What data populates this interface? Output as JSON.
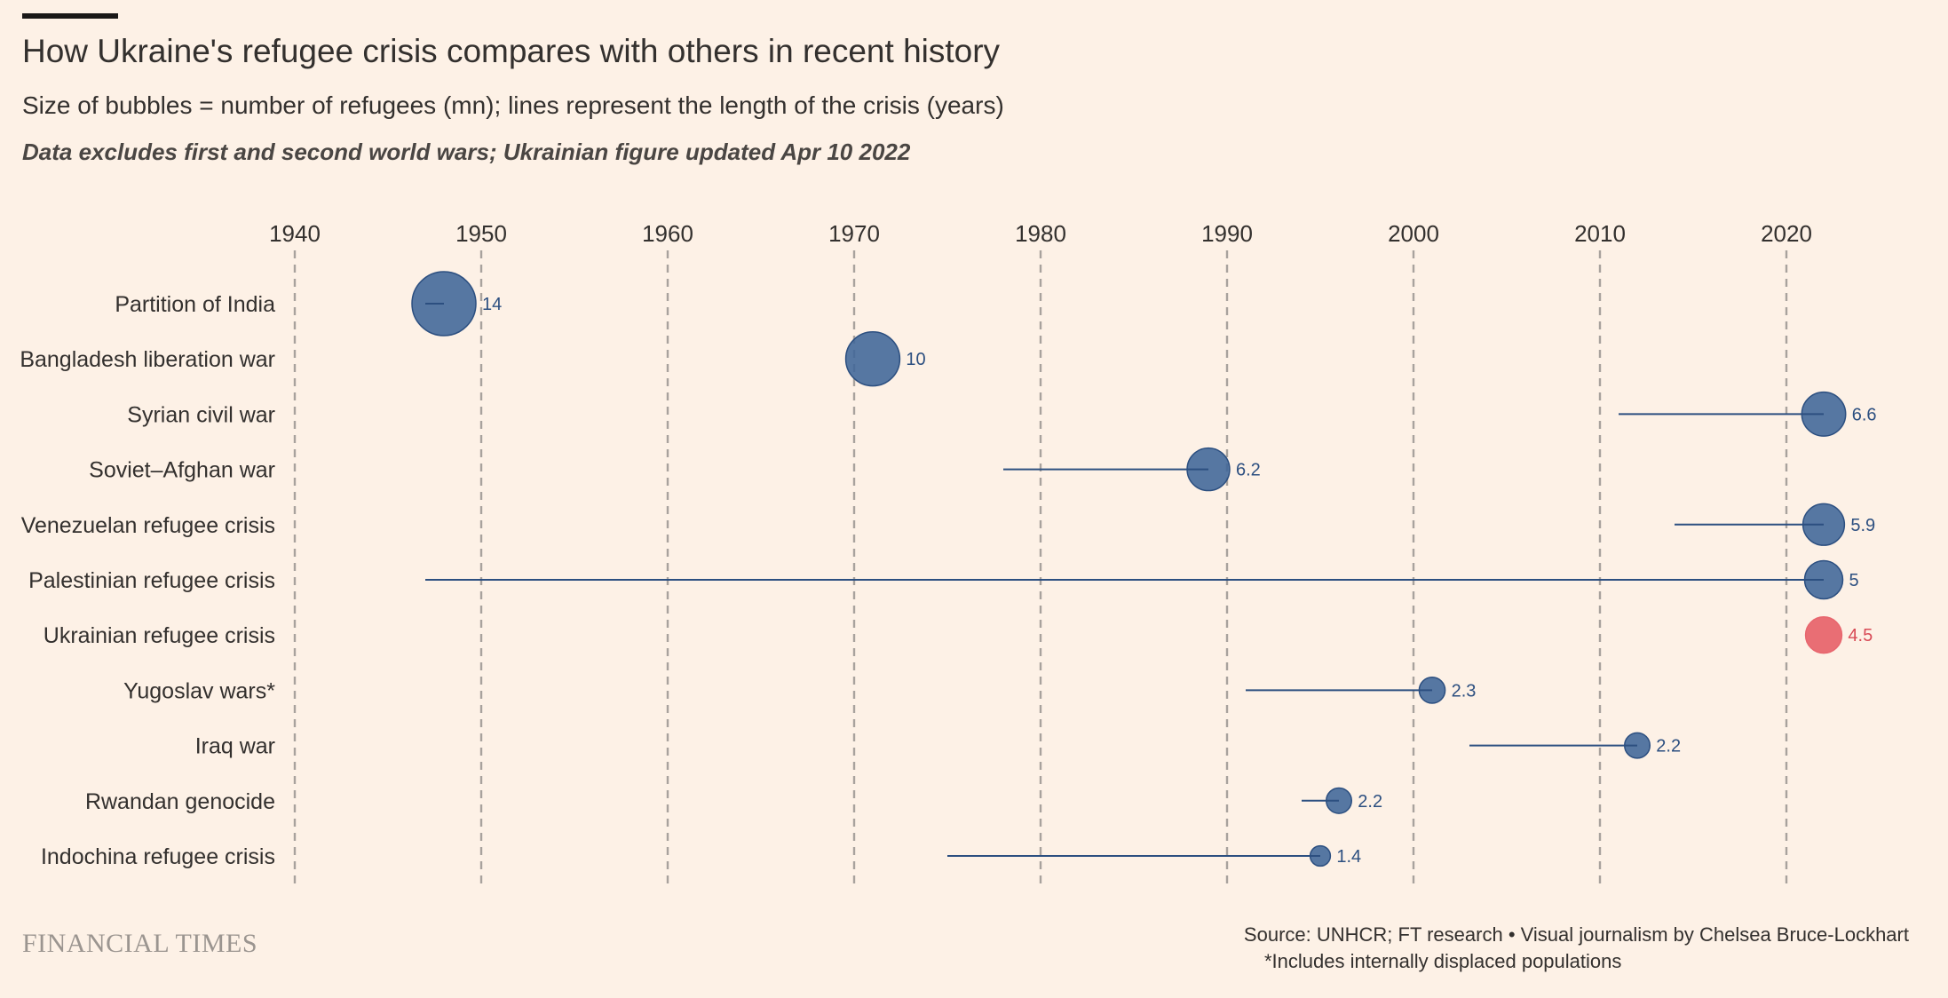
{
  "header": {
    "title": "How Ukraine's refugee crisis compares with others in recent history",
    "subtitle": "Size of bubbles = number of refugees (mn); lines represent the length of the crisis (years)",
    "note": "Data excludes first and second world wars; Ukrainian figure updated Apr 10 2022"
  },
  "footer": {
    "brand": "FINANCIAL TIMES",
    "source": "Source: UNHCR; FT research • Visual journalism by Chelsea Bruce-Lockhart",
    "footnote": "*Includes internally displaced populations"
  },
  "colors": {
    "background": "#fdf1e6",
    "bubble": "#3f6598",
    "bubble_stroke": "#2c4f80",
    "line": "#2c4f80",
    "highlight": "#e8666e",
    "highlight_text": "#d84a56",
    "grid": "#a8a29d",
    "text": "#33302e"
  },
  "chart_data": {
    "type": "scatter",
    "title": "How Ukraine's refugee crisis compares with others in recent history",
    "subtitle": "Size of bubbles = number of refugees (mn); lines represent the length of the crisis (years)",
    "x_axis": {
      "ticks": [
        1940,
        1950,
        1960,
        1970,
        1980,
        1990,
        2000,
        2010,
        2020
      ],
      "range": [
        1940,
        2025
      ],
      "position": "top"
    },
    "grid": "vertical-dashed",
    "series": [
      {
        "label": "Partition of India",
        "start": 1947,
        "end": 1948,
        "value": 14,
        "value_label": "14",
        "highlight": false
      },
      {
        "label": "Bangladesh liberation war",
        "start": 1971,
        "end": 1971,
        "value": 10,
        "value_label": "10",
        "highlight": false
      },
      {
        "label": "Syrian civil war",
        "start": 2011,
        "end": 2022,
        "value": 6.6,
        "value_label": "6.6",
        "highlight": false
      },
      {
        "label": "Soviet–Afghan war",
        "start": 1978,
        "end": 1989,
        "value": 6.2,
        "value_label": "6.2",
        "highlight": false
      },
      {
        "label": "Venezuelan refugee crisis",
        "start": 2014,
        "end": 2022,
        "value": 5.9,
        "value_label": "5.9",
        "highlight": false
      },
      {
        "label": "Palestinian refugee crisis",
        "start": 1947,
        "end": 2022,
        "value": 5,
        "value_label": "5",
        "highlight": false
      },
      {
        "label": "Ukrainian refugee crisis",
        "start": 2022,
        "end": 2022,
        "value": 4.5,
        "value_label": "4.5",
        "highlight": true
      },
      {
        "label": "Yugoslav wars*",
        "start": 1991,
        "end": 2001,
        "value": 2.3,
        "value_label": "2.3",
        "highlight": false
      },
      {
        "label": "Iraq war",
        "start": 2003,
        "end": 2012,
        "value": 2.2,
        "value_label": "2.2",
        "highlight": false
      },
      {
        "label": "Rwandan genocide",
        "start": 1994,
        "end": 1996,
        "value": 2.2,
        "value_label": "2.2",
        "highlight": false
      },
      {
        "label": "Indochina refugee crisis",
        "start": 1975,
        "end": 1995,
        "value": 1.4,
        "value_label": "1.4",
        "highlight": false
      }
    ]
  }
}
